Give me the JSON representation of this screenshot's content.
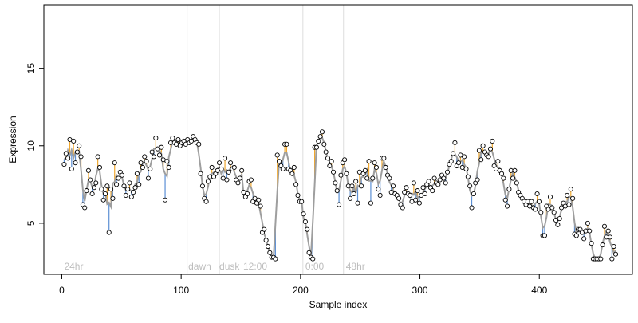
{
  "chart_data": {
    "type": "scatter",
    "title": "",
    "xlabel": "Sample index",
    "ylabel": "Expression",
    "xlim": [
      -15,
      478
    ],
    "ylim": [
      1.7,
      19.1
    ],
    "xticks": [
      0,
      100,
      200,
      300,
      400
    ],
    "yticks": [
      5,
      10,
      15
    ],
    "grid": false,
    "annotations": [
      {
        "label": "24hr",
        "x": 2
      },
      {
        "label": "dawn",
        "x": 106
      },
      {
        "label": "dusk",
        "x": 132
      },
      {
        "label": "12:00",
        "x": 152
      },
      {
        "label": "0:00",
        "x": 204
      },
      {
        "label": "48hr",
        "x": 238
      }
    ],
    "vlines": [
      105,
      132,
      151,
      202,
      236
    ],
    "colors": {
      "above_segment": "#f0a830",
      "below_segment": "#5b8fd4",
      "fit_line": "#9e9e9e",
      "point_edge": "#000000",
      "annotation_text": "#bdbdbd",
      "vline": "#dddddd"
    },
    "series": [
      {
        "values": [
          8.8,
          9.5,
          9.2,
          10.4,
          8.5,
          10.3,
          8.9,
          9.6,
          10.0,
          9.3,
          6.2,
          6.0,
          7.1,
          8.4,
          7.8,
          6.9,
          7.3,
          7.6,
          9.3,
          8.6,
          7.2,
          6.5,
          6.9,
          7.4,
          4.4,
          7.2,
          6.6,
          8.9,
          7.5,
          7.9,
          8.3,
          8.1,
          7.4,
          6.8,
          7.2,
          7.6,
          6.7,
          7.0,
          7.3,
          8.2,
          7.5,
          8.9,
          8.6,
          9.3,
          9.0,
          7.9,
          8.5,
          9.6,
          9.3,
          10.5,
          9.8,
          9.4,
          9.9,
          9.1,
          6.5,
          9.0,
          8.6,
          10.2,
          10.5,
          10.2,
          10.1,
          10.4,
          10.0,
          10.2,
          10.3,
          10.1,
          10.4,
          10.2,
          10.3,
          10.6,
          10.4,
          10.2,
          10.1,
          8.2,
          7.4,
          6.6,
          6.4,
          7.7,
          8.0,
          8.6,
          8.0,
          8.2,
          8.4,
          8.9,
          8.5,
          7.9,
          9.2,
          7.8,
          8.3,
          8.9,
          8.5,
          8.6,
          7.8,
          7.6,
          7.9,
          8.4,
          7.0,
          6.7,
          6.9,
          7.7,
          7.8,
          6.4,
          6.6,
          6.3,
          6.5,
          6.1,
          4.4,
          4.6,
          3.9,
          3.5,
          3.1,
          2.8,
          2.8,
          2.7,
          9.4,
          9.0,
          8.7,
          8.5,
          10.1,
          10.1,
          8.5,
          8.4,
          8.2,
          8.6,
          7.5,
          6.8,
          6.4,
          6.4,
          5.6,
          5.1,
          4.6,
          3.1,
          2.8,
          2.7,
          9.9,
          9.9,
          10.3,
          10.6,
          10.9,
          10.1,
          9.6,
          9.2,
          8.7,
          9.0,
          8.3,
          7.6,
          7.1,
          6.2,
          8.1,
          8.9,
          9.1,
          8.2,
          7.4,
          6.6,
          7.4,
          6.9,
          7.7,
          6.3,
          8.3,
          7.4,
          8.2,
          8.4,
          7.9,
          9.0,
          6.3,
          7.9,
          8.9,
          8.6,
          7.2,
          6.8,
          9.2,
          9.2,
          8.6,
          8.1,
          7.9,
          7.0,
          7.4,
          6.9,
          6.8,
          6.6,
          6.2,
          6.0,
          7.0,
          7.3,
          6.9,
          6.8,
          6.4,
          7.6,
          6.5,
          7.1,
          6.3,
          6.8,
          7.3,
          6.9,
          7.5,
          7.7,
          7.3,
          7.1,
          7.9,
          7.6,
          7.5,
          7.8,
          8.1,
          7.9,
          7.6,
          8.3,
          8.8,
          9.0,
          9.5,
          10.2,
          8.7,
          8.9,
          9.4,
          8.6,
          9.3,
          8.5,
          8.0,
          7.4,
          6.0,
          6.9,
          7.6,
          7.8,
          9.7,
          9.1,
          10.0,
          9.6,
          9.4,
          9.3,
          9.8,
          10.3,
          8.7,
          8.5,
          9.0,
          8.4,
          8.2,
          7.9,
          6.5,
          6.1,
          7.2,
          8.4,
          7.9,
          8.4,
          7.6,
          7.0,
          6.8,
          6.6,
          6.4,
          6.2,
          6.4,
          6.1,
          6.4,
          6.0,
          5.9,
          6.9,
          6.4,
          5.7,
          4.2,
          4.2,
          6.1,
          5.9,
          6.7,
          6.0,
          5.7,
          5.2,
          4.9,
          5.3,
          6.0,
          6.3,
          6.1,
          6.8,
          6.2,
          7.2,
          6.6,
          4.3,
          4.2,
          4.6,
          4.6,
          4.4,
          4.0,
          4.5,
          5.0,
          4.5,
          3.7,
          2.7,
          2.7,
          2.7,
          2.7,
          2.7,
          3.6,
          4.8,
          4.1,
          4.5,
          4.1,
          2.7,
          3.5,
          3.0
        ]
      }
    ]
  }
}
